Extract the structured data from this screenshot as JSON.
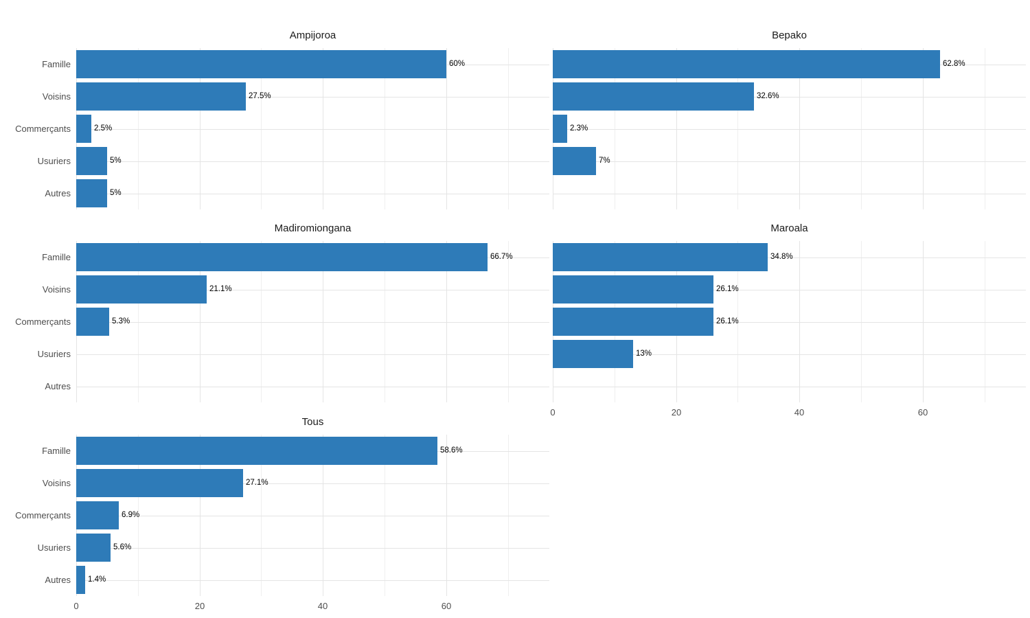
{
  "chart_data": {
    "type": "bar",
    "orientation": "horizontal",
    "facet_layout": "wrap_2_columns",
    "categories": [
      "Famille",
      "Voisins",
      "Commerçants",
      "Usuriers",
      "Autres"
    ],
    "x_ticks": [
      0,
      20,
      40,
      60
    ],
    "x_minor_gridlines": [
      10,
      30,
      50,
      70
    ],
    "xlim": [
      0,
      76.7
    ],
    "grid": true,
    "legend": "none",
    "value_label_suffix": "%",
    "panels": [
      {
        "title": "Ampijoroa",
        "values": [
          60,
          27.5,
          2.5,
          5,
          5
        ],
        "labels": [
          "60%",
          "27.5%",
          "2.5%",
          "5%",
          "5%"
        ]
      },
      {
        "title": "Bepako",
        "values": [
          62.8,
          32.6,
          2.3,
          7,
          0
        ],
        "labels": [
          "62.8%",
          "32.6%",
          "2.3%",
          "7%",
          ""
        ]
      },
      {
        "title": "Madiromiongana",
        "values": [
          66.7,
          21.1,
          5.3,
          0,
          0
        ],
        "labels": [
          "66.7%",
          "21.1%",
          "5.3%",
          "",
          ""
        ]
      },
      {
        "title": "Maroala",
        "values": [
          34.8,
          26.1,
          26.1,
          13,
          0
        ],
        "labels": [
          "34.8%",
          "26.1%",
          "26.1%",
          "13%",
          ""
        ]
      },
      {
        "title": "Tous",
        "values": [
          58.6,
          27.1,
          6.9,
          5.6,
          1.4
        ],
        "labels": [
          "58.6%",
          "27.1%",
          "6.9%",
          "5.6%",
          "1.4%"
        ]
      }
    ],
    "colors": {
      "bar": "#2e7bb8",
      "grid_major": "#e4e4e4",
      "grid_minor": "#efefef",
      "axis_text": "#4d4d4d",
      "title_text": "#1a1a1a",
      "value_text": "#000000",
      "background": "#ffffff"
    }
  }
}
